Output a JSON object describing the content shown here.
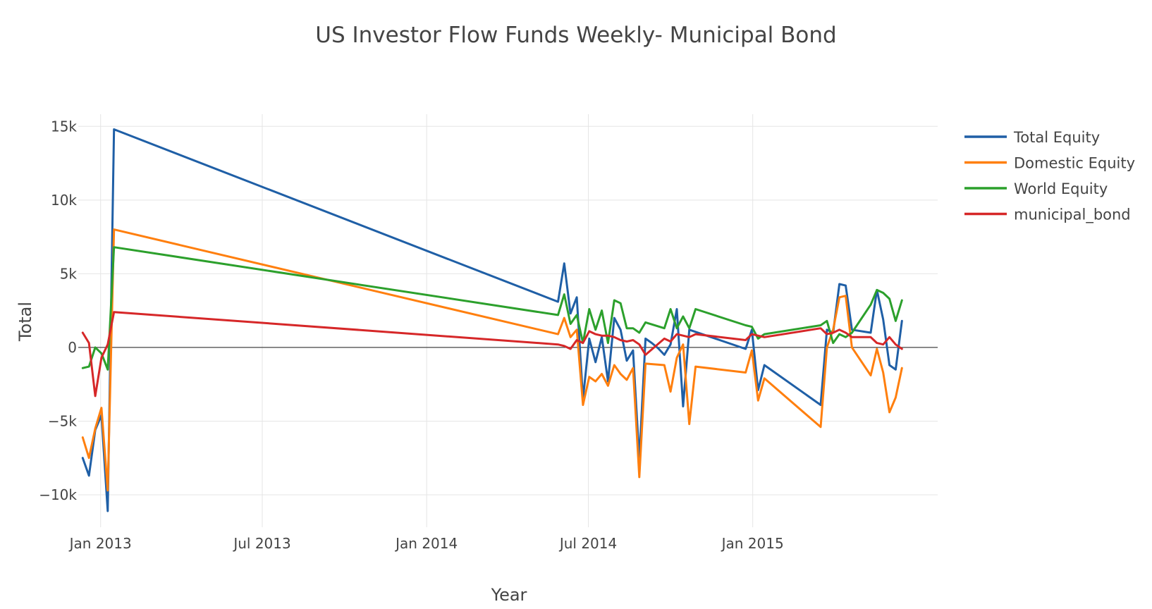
{
  "chart_data": {
    "type": "line",
    "title": "US Investor Flow Funds Weekly- Municipal Bond",
    "xlabel": "Year",
    "ylabel": "Total",
    "x_axis_type": "date",
    "xlim": [
      "2012-12-07",
      "2015-07-27"
    ],
    "ylim": [
      -12200,
      16400
    ],
    "grid": true,
    "zero_line": true,
    "legend_position": "top-right",
    "x_ticks": [
      {
        "date": "2013-01-01",
        "label": "Jan 2013"
      },
      {
        "date": "2013-07-01",
        "label": "Jul 2013"
      },
      {
        "date": "2014-01-01",
        "label": "Jan 2014"
      },
      {
        "date": "2014-07-01",
        "label": "Jul 2014"
      },
      {
        "date": "2015-01-01",
        "label": "Jan 2015"
      }
    ],
    "y_ticks": [
      {
        "value": 15000,
        "label": "15k"
      },
      {
        "value": 10000,
        "label": "10k"
      },
      {
        "value": 5000,
        "label": "5k"
      },
      {
        "value": 0,
        "label": "0"
      },
      {
        "value": -5000,
        "label": "−5k"
      },
      {
        "value": -10000,
        "label": "−10k"
      }
    ],
    "series": [
      {
        "name": "Total Equity",
        "color": "#1f5fa6",
        "points": [
          [
            "2012-12-12",
            -7500
          ],
          [
            "2012-12-19",
            -8700
          ],
          [
            "2012-12-26",
            -5600
          ],
          [
            "2013-01-02",
            -4600
          ],
          [
            "2013-01-09",
            -11100
          ],
          [
            "2013-01-16",
            14800
          ],
          [
            "2014-05-28",
            3100
          ],
          [
            "2014-06-04",
            5700
          ],
          [
            "2014-06-11",
            2300
          ],
          [
            "2014-06-18",
            3400
          ],
          [
            "2014-06-25",
            -3500
          ],
          [
            "2014-07-02",
            600
          ],
          [
            "2014-07-09",
            -1000
          ],
          [
            "2014-07-16",
            700
          ],
          [
            "2014-07-23",
            -2300
          ],
          [
            "2014-07-30",
            2000
          ],
          [
            "2014-08-06",
            1200
          ],
          [
            "2014-08-13",
            -900
          ],
          [
            "2014-08-20",
            -200
          ],
          [
            "2014-08-27",
            -7600
          ],
          [
            "2014-09-03",
            600
          ],
          [
            "2014-09-10",
            300
          ],
          [
            "2014-09-17",
            -50
          ],
          [
            "2014-09-24",
            -500
          ],
          [
            "2014-10-01",
            200
          ],
          [
            "2014-10-08",
            2600
          ],
          [
            "2014-10-15",
            -4000
          ],
          [
            "2014-10-22",
            1200
          ],
          [
            "2014-12-24",
            -100
          ],
          [
            "2014-12-31",
            1200
          ],
          [
            "2015-01-07",
            -2900
          ],
          [
            "2015-01-14",
            -1200
          ],
          [
            "2015-03-18",
            -3900
          ],
          [
            "2015-03-25",
            1200
          ],
          [
            "2015-04-01",
            1000
          ],
          [
            "2015-04-08",
            4300
          ],
          [
            "2015-04-15",
            4200
          ],
          [
            "2015-04-22",
            1200
          ],
          [
            "2015-05-13",
            1000
          ],
          [
            "2015-05-20",
            3900
          ],
          [
            "2015-05-27",
            1900
          ],
          [
            "2015-06-03",
            -1200
          ],
          [
            "2015-06-10",
            -1500
          ],
          [
            "2015-06-17",
            1800
          ]
        ]
      },
      {
        "name": "Domestic Equity",
        "color": "#ff7f0e",
        "points": [
          [
            "2012-12-12",
            -6100
          ],
          [
            "2012-12-19",
            -7500
          ],
          [
            "2012-12-26",
            -5500
          ],
          [
            "2013-01-02",
            -4100
          ],
          [
            "2013-01-09",
            -9700
          ],
          [
            "2013-01-16",
            8000
          ],
          [
            "2014-05-28",
            900
          ],
          [
            "2014-06-04",
            2000
          ],
          [
            "2014-06-11",
            700
          ],
          [
            "2014-06-18",
            1200
          ],
          [
            "2014-06-25",
            -3900
          ],
          [
            "2014-07-02",
            -2000
          ],
          [
            "2014-07-09",
            -2300
          ],
          [
            "2014-07-16",
            -1800
          ],
          [
            "2014-07-23",
            -2600
          ],
          [
            "2014-07-30",
            -1200
          ],
          [
            "2014-08-06",
            -1800
          ],
          [
            "2014-08-13",
            -2200
          ],
          [
            "2014-08-20",
            -1400
          ],
          [
            "2014-08-27",
            -8800
          ],
          [
            "2014-09-03",
            -1100
          ],
          [
            "2014-09-24",
            -1200
          ],
          [
            "2014-10-01",
            -3000
          ],
          [
            "2014-10-08",
            -700
          ],
          [
            "2014-10-15",
            200
          ],
          [
            "2014-10-22",
            -5200
          ],
          [
            "2014-10-29",
            -1300
          ],
          [
            "2014-12-24",
            -1700
          ],
          [
            "2014-12-31",
            -200
          ],
          [
            "2015-01-07",
            -3600
          ],
          [
            "2015-01-14",
            -2100
          ],
          [
            "2015-03-18",
            -5400
          ],
          [
            "2015-03-25",
            0
          ],
          [
            "2015-04-01",
            1200
          ],
          [
            "2015-04-08",
            3400
          ],
          [
            "2015-04-15",
            3500
          ],
          [
            "2015-04-22",
            0
          ],
          [
            "2015-05-13",
            -1900
          ],
          [
            "2015-05-20",
            -100
          ],
          [
            "2015-05-27",
            -1700
          ],
          [
            "2015-06-03",
            -4400
          ],
          [
            "2015-06-10",
            -3400
          ],
          [
            "2015-06-17",
            -1400
          ]
        ]
      },
      {
        "name": "World Equity",
        "color": "#2ca02c",
        "points": [
          [
            "2012-12-12",
            -1400
          ],
          [
            "2012-12-19",
            -1300
          ],
          [
            "2012-12-26",
            0
          ],
          [
            "2013-01-02",
            -400
          ],
          [
            "2013-01-09",
            -1500
          ],
          [
            "2013-01-16",
            6800
          ],
          [
            "2014-05-28",
            2200
          ],
          [
            "2014-06-04",
            3600
          ],
          [
            "2014-06-11",
            1600
          ],
          [
            "2014-06-18",
            2200
          ],
          [
            "2014-06-25",
            300
          ],
          [
            "2014-07-02",
            2600
          ],
          [
            "2014-07-09",
            1200
          ],
          [
            "2014-07-16",
            2500
          ],
          [
            "2014-07-23",
            300
          ],
          [
            "2014-07-30",
            3200
          ],
          [
            "2014-08-06",
            3000
          ],
          [
            "2014-08-13",
            1300
          ],
          [
            "2014-08-20",
            1300
          ],
          [
            "2014-08-27",
            1000
          ],
          [
            "2014-09-03",
            1700
          ],
          [
            "2014-09-24",
            1300
          ],
          [
            "2014-10-01",
            2600
          ],
          [
            "2014-10-08",
            1300
          ],
          [
            "2014-10-15",
            2100
          ],
          [
            "2014-10-22",
            1300
          ],
          [
            "2014-10-29",
            2600
          ],
          [
            "2014-12-24",
            1500
          ],
          [
            "2014-12-31",
            1400
          ],
          [
            "2015-01-07",
            600
          ],
          [
            "2015-01-14",
            900
          ],
          [
            "2015-03-18",
            1500
          ],
          [
            "2015-03-25",
            1800
          ],
          [
            "2015-04-01",
            300
          ],
          [
            "2015-04-08",
            900
          ],
          [
            "2015-04-15",
            700
          ],
          [
            "2015-04-22",
            1000
          ],
          [
            "2015-05-13",
            2900
          ],
          [
            "2015-05-20",
            3900
          ],
          [
            "2015-05-27",
            3700
          ],
          [
            "2015-06-03",
            3300
          ],
          [
            "2015-06-10",
            1800
          ],
          [
            "2015-06-17",
            3200
          ]
        ]
      },
      {
        "name": "municipal_bond",
        "color": "#d62728",
        "points": [
          [
            "2012-12-12",
            1000
          ],
          [
            "2012-12-19",
            300
          ],
          [
            "2012-12-26",
            -3300
          ],
          [
            "2013-01-02",
            -700
          ],
          [
            "2013-01-09",
            200
          ],
          [
            "2013-01-16",
            2400
          ],
          [
            "2014-05-28",
            200
          ],
          [
            "2014-06-04",
            100
          ],
          [
            "2014-06-11",
            -100
          ],
          [
            "2014-06-18",
            500
          ],
          [
            "2014-06-25",
            300
          ],
          [
            "2014-07-02",
            1100
          ],
          [
            "2014-07-09",
            900
          ],
          [
            "2014-07-16",
            800
          ],
          [
            "2014-07-23",
            800
          ],
          [
            "2014-07-30",
            700
          ],
          [
            "2014-08-06",
            500
          ],
          [
            "2014-08-13",
            400
          ],
          [
            "2014-08-20",
            500
          ],
          [
            "2014-08-27",
            200
          ],
          [
            "2014-09-03",
            -500
          ],
          [
            "2014-09-24",
            600
          ],
          [
            "2014-10-01",
            400
          ],
          [
            "2014-10-08",
            900
          ],
          [
            "2014-10-15",
            800
          ],
          [
            "2014-10-22",
            700
          ],
          [
            "2014-10-29",
            900
          ],
          [
            "2014-12-24",
            500
          ],
          [
            "2014-12-31",
            900
          ],
          [
            "2015-01-07",
            800
          ],
          [
            "2015-01-14",
            700
          ],
          [
            "2015-03-18",
            1300
          ],
          [
            "2015-03-25",
            900
          ],
          [
            "2015-04-01",
            1000
          ],
          [
            "2015-04-08",
            1200
          ],
          [
            "2015-04-15",
            1000
          ],
          [
            "2015-04-22",
            700
          ],
          [
            "2015-05-13",
            700
          ],
          [
            "2015-05-20",
            300
          ],
          [
            "2015-05-27",
            200
          ],
          [
            "2015-06-03",
            700
          ],
          [
            "2015-06-10",
            200
          ],
          [
            "2015-06-17",
            -100
          ]
        ]
      }
    ]
  }
}
